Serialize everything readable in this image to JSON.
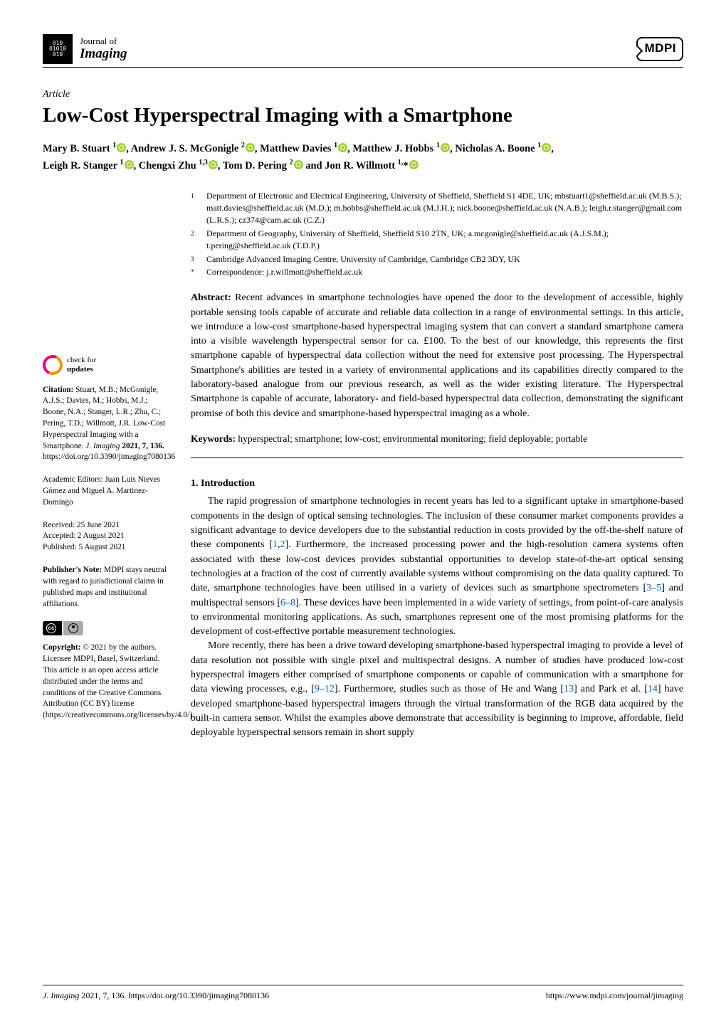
{
  "journal": {
    "of": "Journal of",
    "name": "Imaging",
    "logo_text": "010\n01010\n010"
  },
  "publisher_logo": "MDPI",
  "article_type": "Article",
  "title": "Low-Cost Hyperspectral Imaging with a Smartphone",
  "authors_line1_html": "Mary B. Stuart <sup>1</sup><span class=\"orcid\"></span>, Andrew J. S. McGonigle <sup>2</sup><span class=\"orcid\"></span>, Matthew Davies <sup>1</sup><span class=\"orcid\"></span>, Matthew J. Hobbs <sup>1</sup><span class=\"orcid\"></span>, Nicholas A. Boone <sup>1</sup><span class=\"orcid\"></span>,",
  "authors_line2_html": "Leigh R. Stanger <sup>1</sup><span class=\"orcid\"></span>, Chengxi Zhu <sup>1,3</sup><span class=\"orcid\"></span>, Tom D. Pering <sup>2</sup><span class=\"orcid\"></span> and Jon R. Willmott <sup>1,</sup>*<span class=\"orcid\"></span>",
  "affiliations": [
    {
      "num": "1",
      "text": "Department of Electronic and Electrical Engineering, University of Sheffield, Sheffield S1 4DE, UK; mbstuart1@sheffield.ac.uk (M.B.S.); matt.davies@sheffield.ac.uk (M.D.); m.hobbs@sheffield.ac.uk (M.J.H.); nick.boone@sheffield.ac.uk (N.A.B.); leigh.r.stanger@gmail.com (L.R.S.); cz374@cam.ac.uk (C.Z.)"
    },
    {
      "num": "2",
      "text": "Department of Geography, University of Sheffield, Sheffield S10 2TN, UK; a.mcgonigle@sheffield.ac.uk (A.J.S.M.); t.pering@sheffield.ac.uk (T.D.P.)"
    },
    {
      "num": "3",
      "text": "Cambridge Advanced Imaging Centre, University of Cambridge, Cambridge CB2 3DY, UK"
    },
    {
      "num": "*",
      "text": "Correspondence: j.r.willmott@sheffield.ac.uk"
    }
  ],
  "abstract_label": "Abstract:",
  "abstract_text": "Recent advances in smartphone technologies have opened the door to the development of accessible, highly portable sensing tools capable of accurate and reliable data collection in a range of environmental settings. In this article, we introduce a low-cost smartphone-based hyperspectral imaging system that can convert a standard smartphone camera into a visible wavelength hyperspectral sensor for ca. £100. To the best of our knowledge, this represents the first smartphone capable of hyperspectral data collection without the need for extensive post processing. The Hyperspectral Smartphone's abilities are tested in a variety of environmental applications and its capabilities directly compared to the laboratory-based analogue from our previous research, as well as the wider existing literature. The Hyperspectral Smartphone is capable of accurate, laboratory- and field-based hyperspectral data collection, demonstrating the significant promise of both this device and smartphone-based hyperspectral imaging as a whole.",
  "keywords_label": "Keywords:",
  "keywords_text": "hyperspectral; smartphone; low-cost; environmental monitoring; field deployable; portable",
  "section1_heading": "1. Introduction",
  "para1_html": "The rapid progression of smartphone technologies in recent years has led to a significant uptake in smartphone-based components in the design of optical sensing technologies. The inclusion of these consumer market components provides a significant advantage to device developers due to the substantial reduction in costs provided by the off-the-shelf nature of these components [<a class=\"ref\" href=\"#\">1</a>,<a class=\"ref\" href=\"#\">2</a>]. Furthermore, the increased processing power and the high-resolution camera systems often associated with these low-cost devices provides substantial opportunities to develop state-of-the-art optical sensing technologies at a fraction of the cost of currently available systems without compromising on the data quality captured. To date, smartphone technologies have been utilised in a variety of devices such as smartphone spectrometers [<a class=\"ref\" href=\"#\">3</a>–<a class=\"ref\" href=\"#\">5</a>] and multispectral sensors [<a class=\"ref\" href=\"#\">6</a>–<a class=\"ref\" href=\"#\">8</a>]. These devices have been implemented in a wide variety of settings, from point-of-care analysis to environmental monitoring applications. As such, smartphones represent one of the most promising platforms for the development of cost-effective portable measurement technologies.",
  "para2_html": "More recently, there has been a drive toward developing smartphone-based hyperspectral imaging to provide a level of data resolution not possible with single pixel and multispectral designs. A number of studies have produced low-cost hyperspectral imagers either comprised of smartphone components or capable of communication with a smartphone for data viewing processes, e.g., [<a class=\"ref\" href=\"#\">9</a>–<a class=\"ref\" href=\"#\">12</a>]. Furthermore, studies such as those of He and Wang [<a class=\"ref\" href=\"#\">13</a>] and Park et al. [<a class=\"ref\" href=\"#\">14</a>] have developed smartphone-based hyperspectral imagers through the virtual transformation of the RGB data acquired by the built-in camera sensor. Whilst the examples above demonstrate that accessibility is beginning to improve, affordable, field deployable hyperspectral sensors remain in short supply",
  "sidebar": {
    "check_l1": "check for",
    "check_l2": "updates",
    "citation_label": "Citation:",
    "citation_text": "Stuart, M.B.; McGonigle, A.J.S.; Davies, M.; Hobbs, M.J.; Boone, N.A.; Stanger, L.R.; Zhu, C.; Pering, T.D.; Willmott, J.R. Low-Cost Hyperspectral Imaging with a Smartphone.",
    "citation_journal": "J. Imaging",
    "citation_year_vol": "2021, 7, 136.",
    "citation_doi": "https://doi.org/10.3390/jimaging7080136",
    "editors": "Academic Editors: Juan Luis Nieves Gómez and Miguel A. Martinez-Domingo",
    "received": "Received: 25 June 2021",
    "accepted": "Accepted: 2 August 2021",
    "published": "Published: 5 August 2021",
    "pubnote_label": "Publisher's Note:",
    "pubnote_text": "MDPI stays neutral with regard to jurisdictional claims in published maps and institutional affiliations.",
    "copyright_label": "Copyright:",
    "copyright_text": "© 2021 by the authors. Licensee MDPI, Basel, Switzerland. This article is an open access article distributed under the terms and conditions of the Creative Commons Attribution (CC BY) license (https://creativecommons.org/licenses/by/4.0/)."
  },
  "footer": {
    "left_journal": "J. Imaging",
    "left_rest": " 2021, 7, 136. https://doi.org/10.3390/jimaging7080136",
    "right": "https://www.mdpi.com/journal/jimaging"
  },
  "colors": {
    "orcid_green": "#a6ce39",
    "link_blue": "#0066cc",
    "crossref_pink": "#e6007e",
    "crossref_orange": "#f39200"
  }
}
